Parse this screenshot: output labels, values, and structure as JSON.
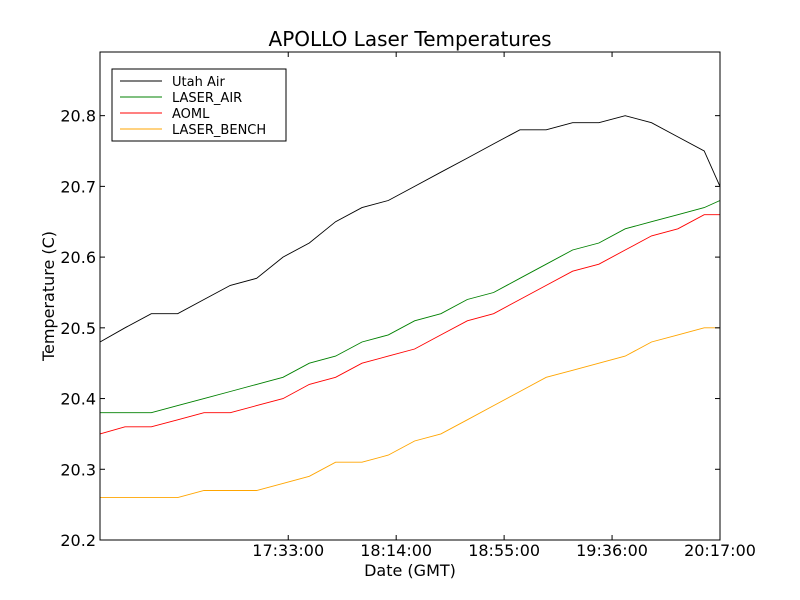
{
  "chart_data": {
    "type": "line",
    "title": "APOLLO Laser Temperatures",
    "xlabel": "Date (GMT)",
    "ylabel": "Temperature (C)",
    "ylim": [
      20.2,
      20.89
    ],
    "yticks": [
      20.2,
      20.3,
      20.4,
      20.5,
      20.6,
      20.7,
      20.8
    ],
    "ytick_labels": [
      "20.2",
      "20.3",
      "20.4",
      "20.5",
      "20.6",
      "20.7",
      "20.8"
    ],
    "xlim_minutes": [
      981.5,
      1217
    ],
    "xticks_minutes": [
      1053,
      1094,
      1135,
      1176,
      1217
    ],
    "xtick_labels": [
      "17:33:00",
      "18:14:00",
      "18:55:00",
      "19:36:00",
      "20:17:00"
    ],
    "grid": false,
    "legend_position": "top-left",
    "x_minutes": [
      981.5,
      991,
      1001,
      1011,
      1021,
      1031,
      1041,
      1051,
      1061,
      1071,
      1081,
      1091,
      1101,
      1111,
      1121,
      1131,
      1141,
      1151,
      1161,
      1171,
      1181,
      1191,
      1201,
      1211,
      1217
    ],
    "series": [
      {
        "name": "Utah Air",
        "color": "#000000",
        "values": [
          20.48,
          20.5,
          20.52,
          20.52,
          20.54,
          20.56,
          20.57,
          20.6,
          20.62,
          20.65,
          20.67,
          20.68,
          20.7,
          20.72,
          20.74,
          20.76,
          20.78,
          20.78,
          20.79,
          20.79,
          20.8,
          20.79,
          20.77,
          20.75,
          20.7
        ]
      },
      {
        "name": "LASER_AIR",
        "color": "#008000",
        "values": [
          20.38,
          20.38,
          20.38,
          20.39,
          20.4,
          20.41,
          20.42,
          20.43,
          20.45,
          20.46,
          20.48,
          20.49,
          20.51,
          20.52,
          20.54,
          20.55,
          20.57,
          20.59,
          20.61,
          20.62,
          20.64,
          20.65,
          20.66,
          20.67,
          20.68
        ]
      },
      {
        "name": "AOML",
        "color": "#ff0000",
        "values": [
          20.35,
          20.36,
          20.36,
          20.37,
          20.38,
          20.38,
          20.39,
          20.4,
          20.42,
          20.43,
          20.45,
          20.46,
          20.47,
          20.49,
          20.51,
          20.52,
          20.54,
          20.56,
          20.58,
          20.59,
          20.61,
          20.63,
          20.64,
          20.66,
          20.66
        ]
      },
      {
        "name": "LASER_BENCH",
        "color": "#ffa500",
        "values": [
          20.26,
          20.26,
          20.26,
          20.26,
          20.27,
          20.27,
          20.27,
          20.28,
          20.29,
          20.31,
          20.31,
          20.32,
          20.34,
          20.35,
          20.37,
          20.39,
          20.41,
          20.43,
          20.44,
          20.45,
          20.46,
          20.48,
          20.49,
          20.5,
          20.5
        ]
      }
    ]
  }
}
